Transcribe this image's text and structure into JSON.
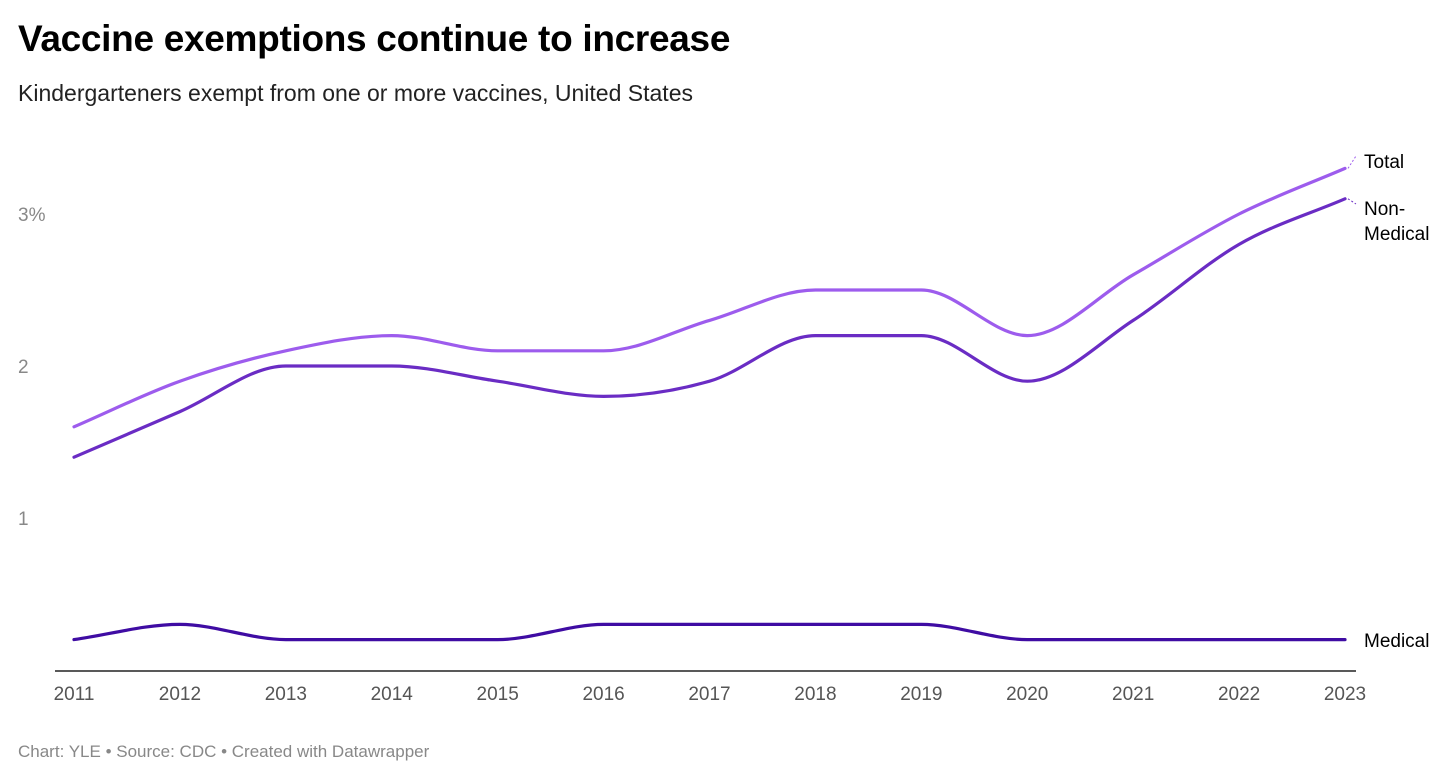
{
  "chart_data": {
    "type": "line",
    "title": "Vaccine exemptions continue to increase",
    "subtitle": "Kindergarteners exempt from one or more vaccines, United States",
    "footer": "Chart: YLE • Source: CDC • Created with Datawrapper",
    "xlabel": "",
    "ylabel": "",
    "x": [
      "2011",
      "2012",
      "2013",
      "2014",
      "2015",
      "2016",
      "2017",
      "2018",
      "2019",
      "2020",
      "2021",
      "2022",
      "2023"
    ],
    "ylim": [
      0,
      3.5
    ],
    "yticks": [
      {
        "value": 1,
        "label": "1"
      },
      {
        "value": 2,
        "label": "2"
      },
      {
        "value": 3,
        "label": "3%"
      }
    ],
    "grid": false,
    "legend": "direct-labels-right",
    "series": [
      {
        "name": "Total",
        "label_lines": [
          "Total"
        ],
        "color": "#9d5ced",
        "values": [
          1.6,
          1.9,
          2.1,
          2.2,
          2.1,
          2.1,
          2.3,
          2.5,
          2.5,
          2.2,
          2.6,
          3.0,
          3.3
        ]
      },
      {
        "name": "Non-Medical",
        "label_lines": [
          "Non-",
          "Medical"
        ],
        "color": "#6a2cc4",
        "values": [
          1.4,
          1.7,
          2.0,
          2.0,
          1.9,
          1.8,
          1.9,
          2.2,
          2.2,
          1.9,
          2.3,
          2.8,
          3.1
        ]
      },
      {
        "name": "Medical",
        "label_lines": [
          "Medical"
        ],
        "color": "#3f0ca3",
        "values": [
          0.2,
          0.3,
          0.2,
          0.2,
          0.2,
          0.3,
          0.3,
          0.3,
          0.3,
          0.2,
          0.2,
          0.2,
          0.2
        ]
      }
    ]
  }
}
